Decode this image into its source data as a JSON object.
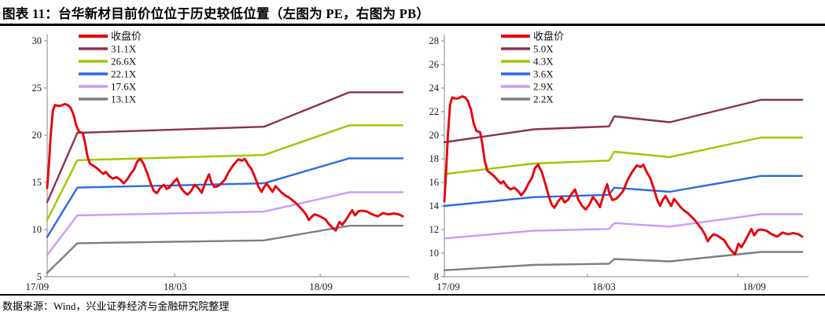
{
  "header": {
    "title": "图表 11：台华新材目前价位位于历史较低位置（左图为 PE，右图为 PB）"
  },
  "footer": {
    "source_note": "数据来源：Wind，兴业证券经济与金融研究院整理"
  },
  "colors": {
    "close": "#e8000b",
    "band1": "#8c3156",
    "band2": "#9dc700",
    "band3": "#2a6be0",
    "band4": "#cc99ff",
    "band5": "#7f7f7f",
    "axis": "#9a9a9a",
    "tick_text": "#1a1a1a"
  },
  "chart_data": {
    "type": "line",
    "close_price": {
      "name": "收盘价",
      "points": [
        [
          0.0,
          14.4
        ],
        [
          0.005,
          17.0
        ],
        [
          0.01,
          20.0
        ],
        [
          0.016,
          22.6
        ],
        [
          0.022,
          23.2
        ],
        [
          0.032,
          23.1
        ],
        [
          0.04,
          23.15
        ],
        [
          0.05,
          23.3
        ],
        [
          0.058,
          23.2
        ],
        [
          0.066,
          22.9
        ],
        [
          0.074,
          22.2
        ],
        [
          0.082,
          21.0
        ],
        [
          0.09,
          20.35
        ],
        [
          0.1,
          20.25
        ],
        [
          0.106,
          19.3
        ],
        [
          0.113,
          17.8
        ],
        [
          0.12,
          17.0
        ],
        [
          0.13,
          16.75
        ],
        [
          0.14,
          16.5
        ],
        [
          0.15,
          16.15
        ],
        [
          0.158,
          15.9
        ],
        [
          0.165,
          16.1
        ],
        [
          0.175,
          15.65
        ],
        [
          0.185,
          15.4
        ],
        [
          0.195,
          15.55
        ],
        [
          0.205,
          15.3
        ],
        [
          0.215,
          14.9
        ],
        [
          0.225,
          15.3
        ],
        [
          0.235,
          15.9
        ],
        [
          0.245,
          16.4
        ],
        [
          0.253,
          17.2
        ],
        [
          0.262,
          17.5
        ],
        [
          0.272,
          16.9
        ],
        [
          0.282,
          15.9
        ],
        [
          0.292,
          14.8
        ],
        [
          0.3,
          14.1
        ],
        [
          0.308,
          13.85
        ],
        [
          0.318,
          14.4
        ],
        [
          0.328,
          14.75
        ],
        [
          0.336,
          14.3
        ],
        [
          0.345,
          14.5
        ],
        [
          0.355,
          15.0
        ],
        [
          0.365,
          15.4
        ],
        [
          0.375,
          14.5
        ],
        [
          0.385,
          14.0
        ],
        [
          0.395,
          13.7
        ],
        [
          0.405,
          14.1
        ],
        [
          0.415,
          14.75
        ],
        [
          0.425,
          14.4
        ],
        [
          0.435,
          13.9
        ],
        [
          0.445,
          15.0
        ],
        [
          0.455,
          15.85
        ],
        [
          0.462,
          15.0
        ],
        [
          0.47,
          14.5
        ],
        [
          0.48,
          14.6
        ],
        [
          0.49,
          14.9
        ],
        [
          0.5,
          15.3
        ],
        [
          0.512,
          16.2
        ],
        [
          0.525,
          16.9
        ],
        [
          0.538,
          17.45
        ],
        [
          0.548,
          17.3
        ],
        [
          0.556,
          17.5
        ],
        [
          0.565,
          16.9
        ],
        [
          0.575,
          16.4
        ],
        [
          0.585,
          15.5
        ],
        [
          0.595,
          14.5
        ],
        [
          0.603,
          14.0
        ],
        [
          0.61,
          14.5
        ],
        [
          0.618,
          14.85
        ],
        [
          0.626,
          14.4
        ],
        [
          0.634,
          14.0
        ],
        [
          0.642,
          14.6
        ],
        [
          0.65,
          14.3
        ],
        [
          0.66,
          13.9
        ],
        [
          0.67,
          13.6
        ],
        [
          0.68,
          13.4
        ],
        [
          0.69,
          13.1
        ],
        [
          0.7,
          12.8
        ],
        [
          0.71,
          12.4
        ],
        [
          0.72,
          12.0
        ],
        [
          0.728,
          11.6
        ],
        [
          0.736,
          11.0
        ],
        [
          0.744,
          11.35
        ],
        [
          0.752,
          11.6
        ],
        [
          0.762,
          11.5
        ],
        [
          0.772,
          11.3
        ],
        [
          0.782,
          11.1
        ],
        [
          0.792,
          10.6
        ],
        [
          0.802,
          10.2
        ],
        [
          0.812,
          9.9
        ],
        [
          0.822,
          10.8
        ],
        [
          0.83,
          10.5
        ],
        [
          0.84,
          11.0
        ],
        [
          0.85,
          11.6
        ],
        [
          0.858,
          12.05
        ],
        [
          0.866,
          11.5
        ],
        [
          0.876,
          11.95
        ],
        [
          0.886,
          12.0
        ],
        [
          0.9,
          11.9
        ],
        [
          0.915,
          11.6
        ],
        [
          0.93,
          11.4
        ],
        [
          0.945,
          11.75
        ],
        [
          0.96,
          11.6
        ],
        [
          0.975,
          11.7
        ],
        [
          0.99,
          11.6
        ],
        [
          1.0,
          11.4
        ]
      ]
    },
    "charts": [
      {
        "id": "pe",
        "name": "PE bands",
        "ylim": [
          5,
          30
        ],
        "ystep": 5,
        "xticks": [
          {
            "label": "17/09",
            "tick_fr": 0.0,
            "label_fr": -0.028
          },
          {
            "label": "18/03",
            "tick_fr": 0.358,
            "label_fr": 0.36
          },
          {
            "label": "18/09",
            "tick_fr": 0.768,
            "label_fr": 0.77
          }
        ],
        "bands": [
          {
            "label": "31.1X",
            "points": [
              [
                0,
                12.9
              ],
              [
                0.085,
                20.25
              ],
              [
                0.61,
                20.9
              ],
              [
                0.85,
                24.55
              ],
              [
                1,
                24.55
              ]
            ]
          },
          {
            "label": "26.6X",
            "points": [
              [
                0,
                11.0
              ],
              [
                0.085,
                17.35
              ],
              [
                0.61,
                17.9
              ],
              [
                0.85,
                21.05
              ],
              [
                1,
                21.05
              ]
            ]
          },
          {
            "label": "22.1X",
            "points": [
              [
                0,
                9.2
              ],
              [
                0.085,
                14.45
              ],
              [
                0.61,
                14.9
              ],
              [
                0.85,
                17.55
              ],
              [
                1,
                17.55
              ]
            ]
          },
          {
            "label": "17.6X",
            "points": [
              [
                0,
                7.3
              ],
              [
                0.085,
                11.5
              ],
              [
                0.61,
                11.9
              ],
              [
                0.85,
                13.95
              ],
              [
                1,
                13.95
              ]
            ]
          },
          {
            "label": "13.1X",
            "points": [
              [
                0,
                5.4
              ],
              [
                0.085,
                8.55
              ],
              [
                0.61,
                8.85
              ],
              [
                0.85,
                10.4
              ],
              [
                1,
                10.4
              ]
            ]
          }
        ]
      },
      {
        "id": "pb",
        "name": "PB bands",
        "ylim": [
          8,
          28
        ],
        "ystep": 2,
        "xticks": [
          {
            "label": "17/09",
            "tick_fr": 0.0,
            "label_fr": 0.011
          },
          {
            "label": "18/03",
            "tick_fr": 0.4,
            "label_fr": 0.446
          },
          {
            "label": "18/09",
            "tick_fr": 0.82,
            "label_fr": 0.866
          }
        ],
        "bands": [
          {
            "label": "5.0X",
            "points": [
              [
                0,
                19.4
              ],
              [
                0.25,
                20.5
              ],
              [
                0.46,
                20.75
              ],
              [
                0.475,
                21.6
              ],
              [
                0.63,
                21.1
              ],
              [
                0.885,
                23.0
              ],
              [
                1,
                23.0
              ]
            ]
          },
          {
            "label": "4.3X",
            "points": [
              [
                0,
                16.7
              ],
              [
                0.25,
                17.6
              ],
              [
                0.46,
                17.85
              ],
              [
                0.475,
                18.6
              ],
              [
                0.63,
                18.15
              ],
              [
                0.885,
                19.8
              ],
              [
                1,
                19.8
              ]
            ]
          },
          {
            "label": "3.6X",
            "points": [
              [
                0,
                14.0
              ],
              [
                0.25,
                14.75
              ],
              [
                0.46,
                14.95
              ],
              [
                0.475,
                15.55
              ],
              [
                0.63,
                15.2
              ],
              [
                0.885,
                16.55
              ],
              [
                1,
                16.55
              ]
            ]
          },
          {
            "label": "2.9X",
            "points": [
              [
                0,
                11.25
              ],
              [
                0.25,
                11.9
              ],
              [
                0.46,
                12.05
              ],
              [
                0.475,
                12.55
              ],
              [
                0.63,
                12.25
              ],
              [
                0.885,
                13.3
              ],
              [
                1,
                13.3
              ]
            ]
          },
          {
            "label": "2.2X",
            "points": [
              [
                0,
                8.55
              ],
              [
                0.25,
                9.0
              ],
              [
                0.46,
                9.1
              ],
              [
                0.475,
                9.5
              ],
              [
                0.63,
                9.3
              ],
              [
                0.885,
                10.1
              ],
              [
                1,
                10.1
              ]
            ]
          }
        ]
      }
    ]
  }
}
